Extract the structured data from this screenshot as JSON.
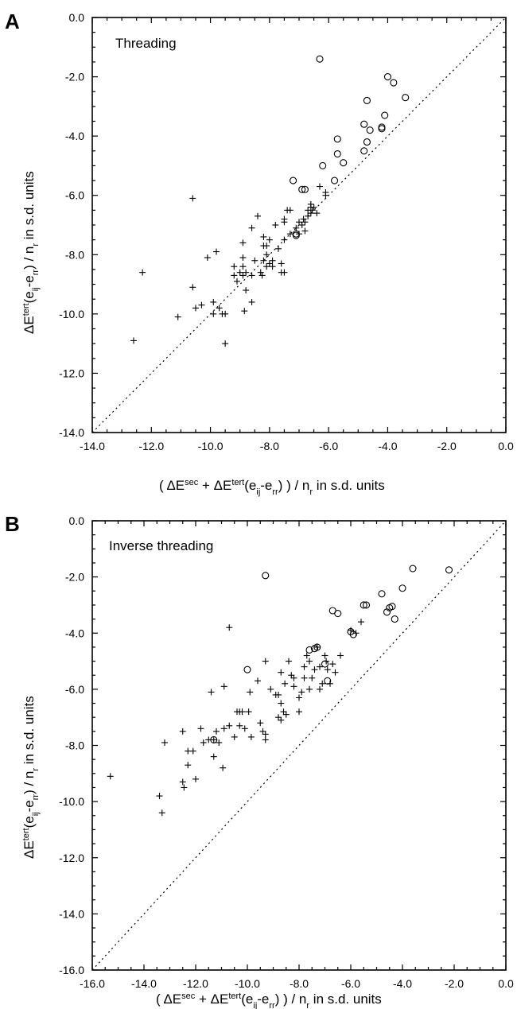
{
  "chart_data": [
    {
      "panel": "A",
      "type": "scatter",
      "annotation": "Threading",
      "xlabel": "( ΔE^sec + ΔE^tert(e_ij-e_rr) ) / n_r  in s.d. units",
      "ylabel": "ΔE^tert(e_ij-e_rr) / n_r  in s.d. units",
      "xlim": [
        -14,
        0
      ],
      "ylim": [
        -14,
        0
      ],
      "xticks": [
        "-14.0",
        "-12.0",
        "-10.0",
        "-8.0",
        "-6.0",
        "-4.0",
        "-2.0",
        "0.0"
      ],
      "yticks": [
        "0.0",
        "-2.0",
        "-4.0",
        "-6.0",
        "-8.0",
        "-10.0",
        "-12.0",
        "-14.0"
      ],
      "diagonal": true,
      "series": [
        {
          "marker": "cross",
          "points": [
            [
              -12.6,
              -10.9
            ],
            [
              -12.3,
              -8.6
            ],
            [
              -11.1,
              -10.1
            ],
            [
              -10.6,
              -9.1
            ],
            [
              -10.6,
              -6.1
            ],
            [
              -10.5,
              -9.8
            ],
            [
              -10.3,
              -9.7
            ],
            [
              -10.1,
              -8.1
            ],
            [
              -9.9,
              -10.0
            ],
            [
              -9.9,
              -9.6
            ],
            [
              -9.8,
              -7.9
            ],
            [
              -9.7,
              -9.8
            ],
            [
              -9.6,
              -10.0
            ],
            [
              -9.5,
              -11.0
            ],
            [
              -9.5,
              -10.0
            ],
            [
              -9.2,
              -8.4
            ],
            [
              -9.2,
              -8.7
            ],
            [
              -9.1,
              -8.9
            ],
            [
              -9.0,
              -8.6
            ],
            [
              -8.9,
              -8.7
            ],
            [
              -8.9,
              -8.4
            ],
            [
              -8.9,
              -8.1
            ],
            [
              -8.9,
              -7.6
            ],
            [
              -8.85,
              -9.9
            ],
            [
              -8.8,
              -9.2
            ],
            [
              -8.8,
              -8.6
            ],
            [
              -8.6,
              -9.6
            ],
            [
              -8.6,
              -7.1
            ],
            [
              -8.6,
              -8.7
            ],
            [
              -8.5,
              -8.2
            ],
            [
              -8.4,
              -6.7
            ],
            [
              -8.3,
              -8.6
            ],
            [
              -8.25,
              -8.7
            ],
            [
              -8.2,
              -7.4
            ],
            [
              -8.2,
              -7.7
            ],
            [
              -8.2,
              -8.2
            ],
            [
              -8.1,
              -8.0
            ],
            [
              -8.1,
              -7.7
            ],
            [
              -8.1,
              -8.4
            ],
            [
              -8.0,
              -8.3
            ],
            [
              -8.0,
              -7.5
            ],
            [
              -7.9,
              -8.2
            ],
            [
              -7.9,
              -8.4
            ],
            [
              -7.8,
              -7.0
            ],
            [
              -7.7,
              -7.8
            ],
            [
              -7.6,
              -8.6
            ],
            [
              -7.6,
              -8.3
            ],
            [
              -7.5,
              -8.6
            ],
            [
              -7.5,
              -7.5
            ],
            [
              -7.5,
              -6.8
            ],
            [
              -7.5,
              -6.9
            ],
            [
              -7.4,
              -6.5
            ],
            [
              -7.3,
              -6.5
            ],
            [
              -7.3,
              -7.3
            ],
            [
              -7.1,
              -7.1
            ],
            [
              -7.0,
              -6.9
            ],
            [
              -7.0,
              -7.3
            ],
            [
              -6.9,
              -7.0
            ],
            [
              -6.85,
              -6.8
            ],
            [
              -6.8,
              -6.9
            ],
            [
              -6.8,
              -7.2
            ],
            [
              -6.7,
              -6.5
            ],
            [
              -6.7,
              -6.7
            ],
            [
              -6.6,
              -6.4
            ],
            [
              -6.6,
              -6.6
            ],
            [
              -6.6,
              -6.3
            ],
            [
              -6.55,
              -6.5
            ],
            [
              -6.5,
              -6.4
            ],
            [
              -6.4,
              -6.6
            ],
            [
              -6.3,
              -5.7
            ],
            [
              -6.1,
              -6.0
            ],
            [
              -6.1,
              -5.9
            ]
          ]
        },
        {
          "marker": "circle",
          "points": [
            [
              -6.3,
              -1.4
            ],
            [
              -4.0,
              -2.0
            ],
            [
              -3.8,
              -2.2
            ],
            [
              -3.4,
              -2.7
            ],
            [
              -4.7,
              -2.8
            ],
            [
              -4.1,
              -3.3
            ],
            [
              -4.8,
              -3.6
            ],
            [
              -4.6,
              -3.8
            ],
            [
              -4.2,
              -3.7
            ],
            [
              -4.2,
              -3.75
            ],
            [
              -4.7,
              -4.2
            ],
            [
              -5.7,
              -4.1
            ],
            [
              -4.8,
              -4.5
            ],
            [
              -5.7,
              -4.6
            ],
            [
              -5.5,
              -4.9
            ],
            [
              -6.2,
              -5.0
            ],
            [
              -5.8,
              -5.5
            ],
            [
              -7.2,
              -5.5
            ],
            [
              -6.9,
              -5.8
            ],
            [
              -6.8,
              -5.8
            ],
            [
              -7.1,
              -7.3
            ],
            [
              -7.1,
              -7.35
            ]
          ]
        }
      ]
    },
    {
      "panel": "B",
      "type": "scatter",
      "annotation": "Inverse threading",
      "xlabel": "( ΔE^sec + ΔE^tert(e_ij-e_rr) ) / n_r  in s.d. units",
      "ylabel": "ΔE^tert(e_ij-e_rr) / n_r  in s.d. units",
      "xlim": [
        -16,
        0
      ],
      "ylim": [
        -16,
        0
      ],
      "xticks": [
        "-16.0",
        "-14.0",
        "-12.0",
        "-10.0",
        "-8.0",
        "-6.0",
        "-4.0",
        "-2.0",
        "0.0"
      ],
      "yticks": [
        "0.0",
        "-2.0",
        "-4.0",
        "-6.0",
        "-8.0",
        "-10.0",
        "-12.0",
        "-14.0",
        "-16.0"
      ],
      "diagonal": true,
      "series": [
        {
          "marker": "cross",
          "points": [
            [
              -15.3,
              -9.1
            ],
            [
              -13.4,
              -9.8
            ],
            [
              -13.3,
              -10.4
            ],
            [
              -13.2,
              -7.9
            ],
            [
              -12.5,
              -7.5
            ],
            [
              -12.5,
              -9.3
            ],
            [
              -12.45,
              -9.5
            ],
            [
              -12.3,
              -8.2
            ],
            [
              -12.3,
              -8.7
            ],
            [
              -12.1,
              -8.2
            ],
            [
              -12.0,
              -9.2
            ],
            [
              -11.8,
              -7.4
            ],
            [
              -11.7,
              -7.9
            ],
            [
              -11.5,
              -7.8
            ],
            [
              -11.4,
              -6.1
            ],
            [
              -11.3,
              -7.8
            ],
            [
              -11.3,
              -8.4
            ],
            [
              -11.2,
              -7.5
            ],
            [
              -11.1,
              -7.9
            ],
            [
              -10.95,
              -8.8
            ],
            [
              -10.9,
              -5.9
            ],
            [
              -10.9,
              -7.4
            ],
            [
              -10.7,
              -3.8
            ],
            [
              -10.7,
              -7.3
            ],
            [
              -10.5,
              -7.7
            ],
            [
              -10.4,
              -6.8
            ],
            [
              -10.3,
              -7.3
            ],
            [
              -10.3,
              -6.8
            ],
            [
              -10.2,
              -6.8
            ],
            [
              -10.1,
              -7.4
            ],
            [
              -9.95,
              -6.8
            ],
            [
              -9.9,
              -6.1
            ],
            [
              -9.85,
              -7.7
            ],
            [
              -9.6,
              -5.7
            ],
            [
              -9.5,
              -7.2
            ],
            [
              -9.4,
              -7.5
            ],
            [
              -9.3,
              -7.6
            ],
            [
              -9.3,
              -7.8
            ],
            [
              -9.3,
              -5.0
            ],
            [
              -9.1,
              -6.0
            ],
            [
              -8.9,
              -6.2
            ],
            [
              -8.8,
              -6.2
            ],
            [
              -8.8,
              -7.0
            ],
            [
              -8.7,
              -5.4
            ],
            [
              -8.7,
              -7.1
            ],
            [
              -8.7,
              -6.5
            ],
            [
              -8.6,
              -6.8
            ],
            [
              -8.55,
              -5.8
            ],
            [
              -8.5,
              -6.9
            ],
            [
              -8.4,
              -5.0
            ],
            [
              -8.3,
              -5.5
            ],
            [
              -8.2,
              -5.9
            ],
            [
              -8.2,
              -5.6
            ],
            [
              -8.0,
              -6.8
            ],
            [
              -8.0,
              -6.3
            ],
            [
              -7.9,
              -6.1
            ],
            [
              -7.8,
              -5.2
            ],
            [
              -7.8,
              -5.6
            ],
            [
              -7.7,
              -4.8
            ],
            [
              -7.6,
              -6.0
            ],
            [
              -7.6,
              -5.0
            ],
            [
              -7.5,
              -5.6
            ],
            [
              -7.4,
              -5.3
            ],
            [
              -7.3,
              -4.5
            ],
            [
              -7.2,
              -5.2
            ],
            [
              -7.2,
              -6.0
            ],
            [
              -7.1,
              -5.8
            ],
            [
              -7.0,
              -4.8
            ],
            [
              -6.95,
              -5.0
            ],
            [
              -6.9,
              -5.3
            ],
            [
              -6.8,
              -5.8
            ],
            [
              -6.7,
              -5.1
            ],
            [
              -6.6,
              -5.4
            ],
            [
              -6.4,
              -4.8
            ],
            [
              -6.0,
              -3.9
            ],
            [
              -5.8,
              -4.0
            ],
            [
              -5.6,
              -3.6
            ]
          ]
        },
        {
          "marker": "circle",
          "points": [
            [
              -3.6,
              -1.7
            ],
            [
              -2.2,
              -1.75
            ],
            [
              -9.3,
              -1.95
            ],
            [
              -4.8,
              -2.6
            ],
            [
              -4.0,
              -2.4
            ],
            [
              -5.4,
              -3.0
            ],
            [
              -5.5,
              -3.0
            ],
            [
              -6.7,
              -3.2
            ],
            [
              -6.5,
              -3.3
            ],
            [
              -4.5,
              -3.1
            ],
            [
              -4.4,
              -3.05
            ],
            [
              -4.6,
              -3.25
            ],
            [
              -4.3,
              -3.5
            ],
            [
              -6.0,
              -3.95
            ],
            [
              -5.9,
              -4.05
            ],
            [
              -7.4,
              -4.55
            ],
            [
              -7.3,
              -4.5
            ],
            [
              -7.6,
              -4.6
            ],
            [
              -7.0,
              -5.1
            ],
            [
              -10.0,
              -5.3
            ],
            [
              -11.3,
              -7.8
            ],
            [
              -6.9,
              -5.7
            ]
          ]
        }
      ]
    }
  ],
  "panels": {
    "A": {
      "letter": "A"
    },
    "B": {
      "letter": "B"
    }
  }
}
